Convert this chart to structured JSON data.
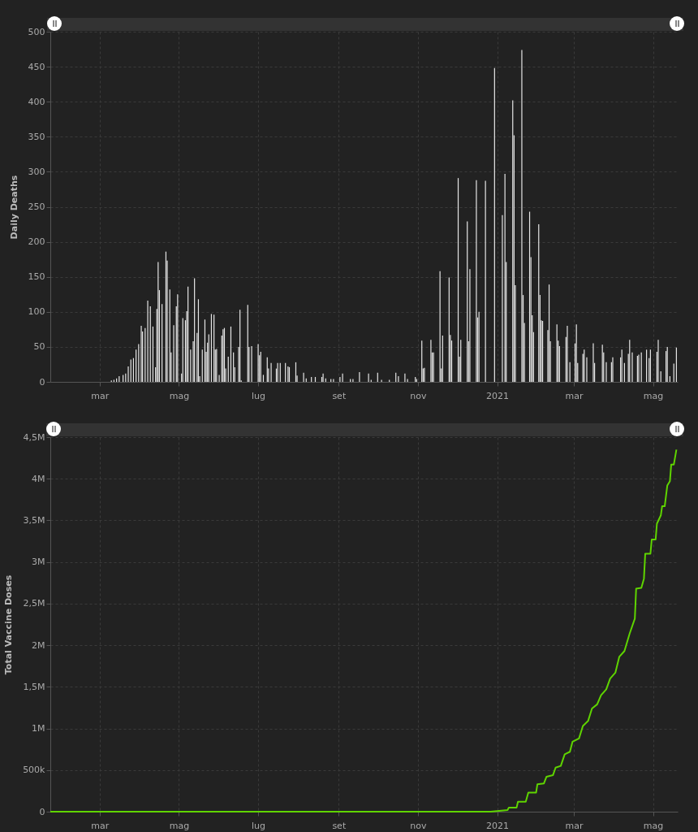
{
  "chart_data": [
    {
      "type": "bar",
      "ylabel": "Daily Deaths",
      "color": "#e6e6e6",
      "grid": true,
      "xlim": [
        "2020-01-23",
        "2021-05-20"
      ],
      "ylim": [
        0,
        500
      ],
      "yticks": [
        0,
        50,
        100,
        150,
        200,
        250,
        300,
        350,
        400,
        450,
        500
      ],
      "xticks": [
        {
          "value": "2020-03-01",
          "label": "mar"
        },
        {
          "value": "2020-05-01",
          "label": "mag"
        },
        {
          "value": "2020-07-01",
          "label": "lug"
        },
        {
          "value": "2020-09-01",
          "label": "set"
        },
        {
          "value": "2020-11-01",
          "label": "nov"
        },
        {
          "value": "2021-01-01",
          "label": "2021"
        },
        {
          "value": "2021-03-01",
          "label": "mar"
        },
        {
          "value": "2021-05-01",
          "label": "mag"
        }
      ],
      "x": [
        "2020-03-10",
        "2020-03-12",
        "2020-03-14",
        "2020-03-16",
        "2020-03-19",
        "2020-03-21",
        "2020-03-23",
        "2020-03-25",
        "2020-03-27",
        "2020-03-29",
        "2020-03-31",
        "2020-04-02",
        "2020-04-03",
        "2020-04-05",
        "2020-04-07",
        "2020-04-09",
        "2020-04-11",
        "2020-04-13",
        "2020-04-14",
        "2020-04-15",
        "2020-04-16",
        "2020-04-18",
        "2020-04-21",
        "2020-04-22",
        "2020-04-24",
        "2020-04-25",
        "2020-04-27",
        "2020-04-29",
        "2020-04-30",
        "2020-05-03",
        "2020-05-04",
        "2020-05-06",
        "2020-05-07",
        "2020-05-08",
        "2020-05-10",
        "2020-05-12",
        "2020-05-13",
        "2020-05-15",
        "2020-05-16",
        "2020-05-17",
        "2020-05-19",
        "2020-05-21",
        "2020-05-22",
        "2020-05-23",
        "2020-05-24",
        "2020-05-26",
        "2020-05-28",
        "2020-05-29",
        "2020-05-30",
        "2020-06-01",
        "2020-06-03",
        "2020-06-04",
        "2020-06-05",
        "2020-06-06",
        "2020-06-08",
        "2020-06-10",
        "2020-06-12",
        "2020-06-13",
        "2020-06-16",
        "2020-06-17",
        "2020-06-18",
        "2020-06-23",
        "2020-06-24",
        "2020-06-26",
        "2020-07-01",
        "2020-07-02",
        "2020-07-03",
        "2020-07-05",
        "2020-07-08",
        "2020-07-09",
        "2020-07-11",
        "2020-07-15",
        "2020-07-16",
        "2020-07-18",
        "2020-07-22",
        "2020-07-24",
        "2020-07-25",
        "2020-07-30",
        "2020-07-31",
        "2020-08-05",
        "2020-08-07",
        "2020-08-11",
        "2020-08-14",
        "2020-08-19",
        "2020-08-20",
        "2020-08-22",
        "2020-08-26",
        "2020-08-28",
        "2020-09-02",
        "2020-09-04",
        "2020-09-10",
        "2020-09-12",
        "2020-09-17",
        "2020-09-24",
        "2020-09-26",
        "2020-10-01",
        "2020-10-04",
        "2020-10-10",
        "2020-10-15",
        "2020-10-17",
        "2020-10-22",
        "2020-10-24",
        "2020-10-30",
        "2020-10-31",
        "2020-11-04",
        "2020-11-05",
        "2020-11-06",
        "2020-11-11",
        "2020-11-12",
        "2020-11-13",
        "2020-11-18",
        "2020-11-19",
        "2020-11-20",
        "2020-11-25",
        "2020-11-26",
        "2020-11-27",
        "2020-12-02",
        "2020-12-03",
        "2020-12-04",
        "2020-12-09",
        "2020-12-10",
        "2020-12-11",
        "2020-12-16",
        "2020-12-17",
        "2020-12-18",
        "2020-12-23",
        "2020-12-30",
        "2021-01-05",
        "2021-01-07",
        "2021-01-08",
        "2021-01-13",
        "2021-01-14",
        "2021-01-15",
        "2021-01-20",
        "2021-01-21",
        "2021-01-22",
        "2021-01-26",
        "2021-01-27",
        "2021-01-28",
        "2021-01-29",
        "2021-02-02",
        "2021-02-03",
        "2021-02-04",
        "2021-02-05",
        "2021-02-09",
        "2021-02-10",
        "2021-02-11",
        "2021-02-16",
        "2021-02-17",
        "2021-02-18",
        "2021-02-23",
        "2021-02-24",
        "2021-02-26",
        "2021-03-02",
        "2021-03-03",
        "2021-03-04",
        "2021-03-08",
        "2021-03-09",
        "2021-03-11",
        "2021-03-16",
        "2021-03-17",
        "2021-03-23",
        "2021-03-24",
        "2021-03-26",
        "2021-03-30",
        "2021-03-31",
        "2021-04-06",
        "2021-04-07",
        "2021-04-09",
        "2021-04-12",
        "2021-04-13",
        "2021-04-15",
        "2021-04-19",
        "2021-04-20",
        "2021-04-22",
        "2021-04-26",
        "2021-04-28",
        "2021-04-29",
        "2021-05-04",
        "2021-05-05",
        "2021-05-07",
        "2021-05-11",
        "2021-05-12",
        "2021-05-14",
        "2021-05-17",
        "2021-05-19"
      ],
      "values": [
        2,
        3,
        5,
        8,
        10,
        12,
        22,
        32,
        34,
        46,
        54,
        80,
        72,
        77,
        116,
        108,
        79,
        21,
        104,
        171,
        131,
        111,
        186,
        173,
        132,
        42,
        81,
        108,
        125,
        12,
        91,
        88,
        101,
        136,
        46,
        58,
        148,
        70,
        118,
        8,
        46,
        89,
        43,
        56,
        68,
        97,
        96,
        46,
        47,
        10,
        66,
        75,
        77,
        19,
        36,
        79,
        42,
        21,
        50,
        103,
        2,
        110,
        50,
        51,
        54,
        38,
        43,
        10,
        35,
        19,
        27,
        19,
        27,
        27,
        27,
        22,
        21,
        28,
        9,
        13,
        5,
        7,
        7,
        7,
        12,
        5,
        4,
        4,
        7,
        12,
        4,
        4,
        14,
        12,
        3,
        13,
        3,
        3,
        13,
        8,
        12,
        4,
        7,
        4,
        59,
        19,
        20,
        60,
        42,
        42,
        158,
        19,
        66,
        149,
        67,
        59,
        291,
        36,
        60,
        229,
        58,
        161,
        288,
        92,
        100,
        287,
        448,
        238,
        297,
        171,
        402,
        352,
        138,
        474,
        124,
        84,
        243,
        178,
        95,
        71,
        225,
        124,
        88,
        87,
        74,
        139,
        58,
        82,
        59,
        51,
        64,
        80,
        28,
        55,
        82,
        27,
        40,
        46,
        35,
        55,
        27,
        53,
        42,
        28,
        28,
        35,
        35,
        46,
        27,
        40,
        60,
        42,
        37,
        39,
        42,
        46,
        34,
        46,
        43,
        60,
        15,
        44,
        50,
        8,
        26,
        49
      ]
    },
    {
      "type": "line",
      "ylabel": "Total Vaccine Doses",
      "color": "#5fd400",
      "grid": true,
      "xlim": [
        "2020-01-23",
        "2021-05-20"
      ],
      "ylim": [
        0,
        4500000
      ],
      "yticks": [
        0,
        {
          "value": 500000,
          "label": "500k"
        },
        {
          "value": 1000000,
          "label": "1M"
        },
        {
          "value": 1500000,
          "label": "1,5M"
        },
        {
          "value": 2000000,
          "label": "2M"
        },
        {
          "value": 2500000,
          "label": "2,5M"
        },
        {
          "value": 3000000,
          "label": "3M"
        },
        {
          "value": 3500000,
          "label": "3,5M"
        },
        {
          "value": 4000000,
          "label": "4M"
        },
        {
          "value": 4500000,
          "label": "4,5M"
        }
      ],
      "xticks": [
        {
          "value": "2020-03-01",
          "label": "mar"
        },
        {
          "value": "2020-05-01",
          "label": "mag"
        },
        {
          "value": "2020-07-01",
          "label": "lug"
        },
        {
          "value": "2020-09-01",
          "label": "set"
        },
        {
          "value": "2020-11-01",
          "label": "nov"
        },
        {
          "value": "2021-01-01",
          "label": "2021"
        },
        {
          "value": "2021-03-01",
          "label": "mar"
        },
        {
          "value": "2021-05-01",
          "label": "mag"
        }
      ],
      "x": [
        "2020-01-23",
        "2020-12-27",
        "2021-01-09",
        "2021-01-10",
        "2021-01-16",
        "2021-01-17",
        "2021-01-23",
        "2021-01-25",
        "2021-01-31",
        "2021-02-01",
        "2021-02-06",
        "2021-02-08",
        "2021-02-13",
        "2021-02-15",
        "2021-02-19",
        "2021-02-22",
        "2021-02-26",
        "2021-02-28",
        "2021-03-05",
        "2021-03-08",
        "2021-03-12",
        "2021-03-15",
        "2021-03-19",
        "2021-03-22",
        "2021-03-26",
        "2021-03-29",
        "2021-04-02",
        "2021-04-05",
        "2021-04-09",
        "2021-04-13",
        "2021-04-17",
        "2021-04-18",
        "2021-04-22",
        "2021-04-24",
        "2021-04-25",
        "2021-04-29",
        "2021-04-30",
        "2021-05-03",
        "2021-05-04",
        "2021-05-07",
        "2021-05-08",
        "2021-05-10",
        "2021-05-12",
        "2021-05-14",
        "2021-05-15",
        "2021-05-17",
        "2021-05-19"
      ],
      "values": [
        0,
        0,
        20000,
        50000,
        50000,
        120000,
        120000,
        230000,
        230000,
        330000,
        340000,
        420000,
        440000,
        530000,
        550000,
        690000,
        720000,
        840000,
        880000,
        1030000,
        1090000,
        1240000,
        1290000,
        1400000,
        1470000,
        1600000,
        1670000,
        1860000,
        1930000,
        2140000,
        2320000,
        2680000,
        2690000,
        2800000,
        3100000,
        3100000,
        3270000,
        3270000,
        3460000,
        3560000,
        3670000,
        3670000,
        3920000,
        3970000,
        4170000,
        4170000,
        4350000
      ]
    }
  ]
}
